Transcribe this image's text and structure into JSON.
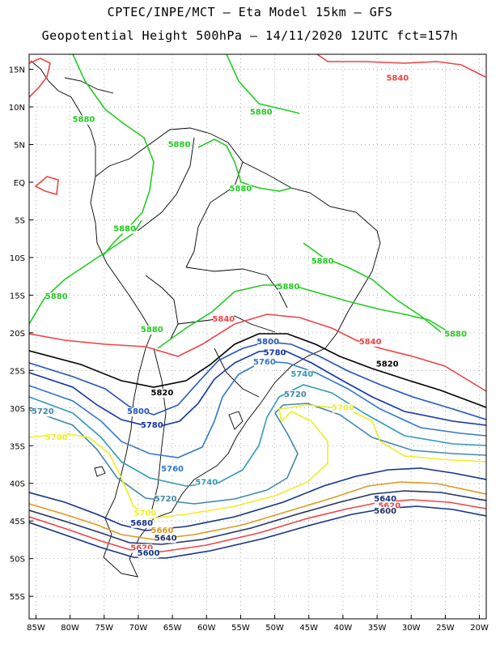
{
  "header": {
    "line1": "CPTEC/INPE/MCT —  Eta Model 15km — GFS",
    "line2": "Geopotential Height 500hPa — 14/11/2020 12UTC fct=157h"
  },
  "axes": {
    "lon_labels": [
      "85W",
      "80W",
      "75W",
      "70W",
      "65W",
      "60W",
      "55W",
      "50W",
      "45W",
      "40W",
      "35W",
      "30W",
      "25W",
      "20W"
    ],
    "lat_labels": [
      "15N",
      "10N",
      "5N",
      "EQ",
      "5S",
      "10S",
      "15S",
      "20S",
      "25S",
      "30S",
      "35S",
      "40S",
      "45S",
      "50S",
      "55S"
    ],
    "lon_range": [
      -86,
      -19
    ],
    "lat_range": [
      17,
      -58
    ]
  },
  "colors": {
    "c5880": "#22cc22",
    "c5840": "#ee4444",
    "c5820": "#000000",
    "c5800": "#2255bb",
    "c5780": "#1133aa",
    "c5760": "#3377cc",
    "c5740": "#3399bb",
    "c5720": "#4488aa",
    "c5700": "#eeee22",
    "c5680": "#113388",
    "c5660": "#dd9922",
    "c5640": "#223366"
  },
  "contour_labels": [
    {
      "text": "5840",
      "color": "c5840",
      "lon": -32,
      "lat": 13.5
    },
    {
      "text": "5880",
      "color": "c5880",
      "lon": -78,
      "lat": 8
    },
    {
      "text": "5880",
      "color": "c5880",
      "lon": -52,
      "lat": 9
    },
    {
      "text": "5880",
      "color": "c5880",
      "lon": -64,
      "lat": 4.7
    },
    {
      "text": "5880",
      "color": "c5880",
      "lon": -55,
      "lat": -1.2
    },
    {
      "text": "5880",
      "color": "c5880",
      "lon": -72,
      "lat": -6.5
    },
    {
      "text": "5880",
      "color": "c5880",
      "lon": -43,
      "lat": -10.8
    },
    {
      "text": "5880",
      "color": "c5880",
      "lon": -82,
      "lat": -15.5
    },
    {
      "text": "5880",
      "color": "c5880",
      "lon": -48,
      "lat": -14.2
    },
    {
      "text": "5880",
      "color": "c5880",
      "lon": -68,
      "lat": -19.9
    },
    {
      "text": "5880",
      "color": "c5880",
      "lon": -23.5,
      "lat": -20.5
    },
    {
      "text": "5840",
      "color": "c5840",
      "lon": -57.5,
      "lat": -18.5
    },
    {
      "text": "5840",
      "color": "c5840",
      "lon": -36,
      "lat": -21.5
    },
    {
      "text": "5820",
      "color": "c5820",
      "lon": -33.5,
      "lat": -24.5
    },
    {
      "text": "5820",
      "color": "c5820",
      "lon": -66.5,
      "lat": -28.3
    },
    {
      "text": "5800",
      "color": "c5800",
      "lon": -51,
      "lat": -21.5
    },
    {
      "text": "5780",
      "color": "c5780",
      "lon": -50,
      "lat": -23
    },
    {
      "text": "5760",
      "color": "c5760",
      "lon": -51.5,
      "lat": -24.2
    },
    {
      "text": "5740",
      "color": "c5740",
      "lon": -46,
      "lat": -25.8
    },
    {
      "text": "5720",
      "color": "c5720",
      "lon": -47,
      "lat": -28.5
    },
    {
      "text": "5700",
      "color": "c5700",
      "lon": -40,
      "lat": -30.3
    },
    {
      "text": "5800",
      "color": "c5800",
      "lon": -70,
      "lat": -30.8
    },
    {
      "text": "5780",
      "color": "c5780",
      "lon": -68,
      "lat": -32.6
    },
    {
      "text": "5720",
      "color": "c5720",
      "lon": -84,
      "lat": -30.8
    },
    {
      "text": "5700",
      "color": "c5700",
      "lon": -82,
      "lat": -34.2
    },
    {
      "text": "5760",
      "color": "c5760",
      "lon": -65,
      "lat": -38.4
    },
    {
      "text": "5740",
      "color": "c5740",
      "lon": -60,
      "lat": -40.2
    },
    {
      "text": "5720",
      "color": "c5720",
      "lon": -66,
      "lat": -42.4
    },
    {
      "text": "5700",
      "color": "c5700",
      "lon": -69,
      "lat": -44.3
    },
    {
      "text": "5680",
      "color": "c5680",
      "lon": -69.5,
      "lat": -45.6
    },
    {
      "text": "5660",
      "color": "c5660",
      "lon": -66.5,
      "lat": -46.6
    },
    {
      "text": "5640",
      "color": "c5640",
      "lon": -66,
      "lat": -47.6
    },
    {
      "text": "5620",
      "color": "c5840",
      "lon": -69.5,
      "lat": -48.9
    },
    {
      "text": "5600",
      "color": "c5680",
      "lon": -68.5,
      "lat": -49.6
    },
    {
      "text": "5640",
      "color": "c5680",
      "lon": -33.8,
      "lat": -42.4
    },
    {
      "text": "5620",
      "color": "c5840",
      "lon": -33.2,
      "lat": -43.3
    },
    {
      "text": "5600",
      "color": "c5640",
      "lon": -33.8,
      "lat": -44
    }
  ]
}
